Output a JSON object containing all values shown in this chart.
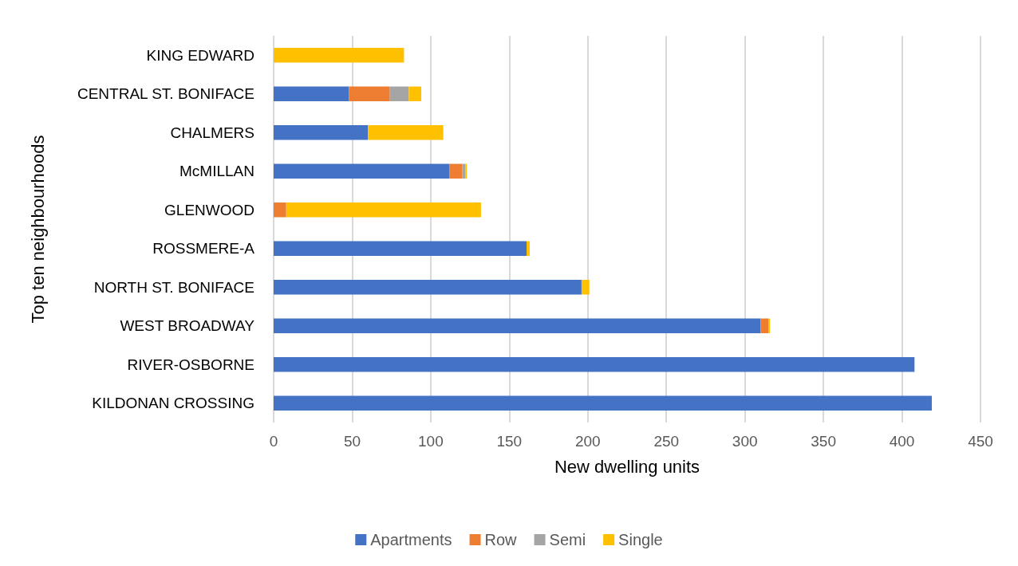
{
  "chart_data": {
    "type": "bar",
    "orientation": "horizontal",
    "stacked": true,
    "xlabel": "New dwelling units",
    "ylabel": "Top ten neighbourhoods",
    "categories": [
      "KING EDWARD",
      "CENTRAL ST. BONIFACE",
      "CHALMERS",
      "McMILLAN",
      "GLENWOOD",
      "ROSSMERE-A",
      "NORTH ST. BONIFACE",
      "WEST BROADWAY",
      "RIVER-OSBORNE",
      "KILDONAN CROSSING"
    ],
    "series": [
      {
        "name": "Apartments",
        "color": "#4472c4",
        "values": [
          0,
          48,
          60,
          112,
          0,
          161,
          196,
          310,
          408,
          419
        ]
      },
      {
        "name": "Row",
        "color": "#ed7d31",
        "values": [
          0,
          26,
          0,
          8,
          8,
          0,
          0,
          5,
          0,
          0
        ]
      },
      {
        "name": "Semi",
        "color": "#a5a5a5",
        "values": [
          0,
          12,
          0,
          2,
          0,
          0,
          0,
          0,
          0,
          0
        ]
      },
      {
        "name": "Single",
        "color": "#ffc000",
        "values": [
          83,
          8,
          48,
          1,
          124,
          2,
          5,
          1,
          0,
          0
        ]
      }
    ],
    "xlim": [
      0,
      450
    ],
    "xticks": [
      0,
      50,
      100,
      150,
      200,
      250,
      300,
      350,
      400,
      450
    ],
    "grid": "x",
    "legend": "bottom"
  }
}
